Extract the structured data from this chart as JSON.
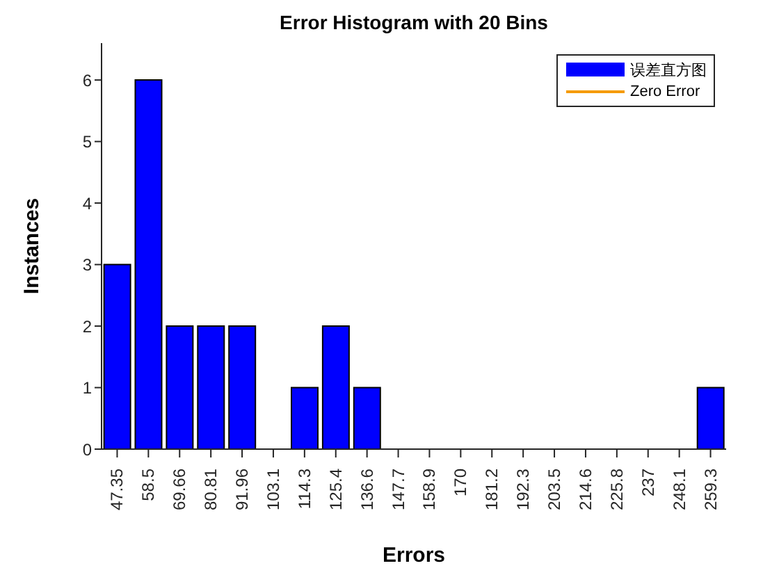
{
  "chart_data": {
    "type": "bar",
    "title": "Error Histogram with 20 Bins",
    "xlabel": "Errors",
    "ylabel": "Instances",
    "categories": [
      "47.35",
      "58.5",
      "69.66",
      "80.81",
      "91.96",
      "103.1",
      "114.3",
      "125.4",
      "136.6",
      "147.7",
      "158.9",
      "170",
      "181.2",
      "192.3",
      "203.5",
      "214.6",
      "225.8",
      "237",
      "248.1",
      "259.3"
    ],
    "series": [
      {
        "name": "误差直方图",
        "color": "#0000ff",
        "values": [
          3,
          6,
          2,
          2,
          2,
          0,
          1,
          2,
          1,
          0,
          0,
          0,
          0,
          0,
          0,
          0,
          0,
          0,
          0,
          1
        ]
      },
      {
        "name": "Zero Error",
        "type": "line",
        "color": "#f59a00",
        "values": [
          null,
          null,
          null,
          null,
          null,
          null,
          null,
          null,
          null,
          null,
          null,
          null,
          null,
          null,
          null,
          null,
          null,
          null,
          null,
          null
        ]
      }
    ],
    "ylim": [
      0,
      6.6
    ],
    "yticks": [
      0,
      1,
      2,
      3,
      4,
      5,
      6
    ],
    "grid": false,
    "legend": "top right"
  }
}
